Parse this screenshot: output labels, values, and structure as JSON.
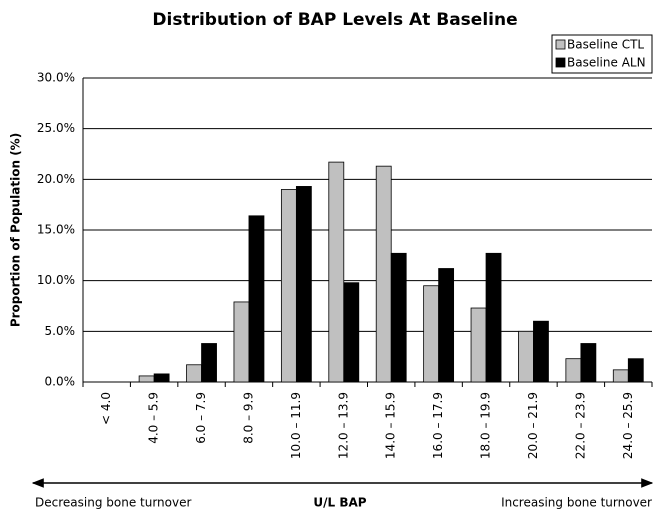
{
  "chart_data": {
    "type": "bar",
    "title": "Distribution of BAP Levels At Baseline",
    "x_label": "U/L BAP",
    "y_label": "Proportion of Population (%)",
    "annotations": [
      "Decreasing bone turnover",
      "Increasing bone turnover"
    ],
    "categories": [
      "< 4.0",
      "4.0 – 5.9",
      "6.0 – 7.9",
      "8.0 – 9.9",
      "10.0 – 11.9",
      "12.0 – 13.9",
      "14.0 – 15.9",
      "16.0 – 17.9",
      "18.0 – 19.9",
      "20.0 – 21.9",
      "22.0 – 23.9",
      "24.0 – 25.9"
    ],
    "series": [
      {
        "name": "Baseline CTL",
        "color": "#c0c0c0",
        "values": [
          0,
          0.6,
          1.7,
          7.9,
          19.0,
          21.7,
          21.3,
          9.5,
          7.3,
          5.0,
          2.3,
          1.2
        ]
      },
      {
        "name": "Baseline ALN",
        "color": "#000000",
        "values": [
          0,
          0.8,
          3.8,
          16.4,
          19.3,
          9.8,
          12.7,
          11.2,
          12.7,
          6.0,
          3.8,
          2.3
        ]
      }
    ],
    "ylim": [
      0,
      30
    ],
    "yticks": [
      {
        "value": 0,
        "label": "0.0%"
      },
      {
        "value": 5,
        "label": "5.0%"
      },
      {
        "value": 10,
        "label": "10.0%"
      },
      {
        "value": 15,
        "label": "15.0%"
      },
      {
        "value": 20,
        "label": "20.0%"
      },
      {
        "value": 25,
        "label": "25.0%"
      },
      {
        "value": 30,
        "label": "30.0%"
      }
    ],
    "grid": true,
    "legend": "top-right"
  }
}
